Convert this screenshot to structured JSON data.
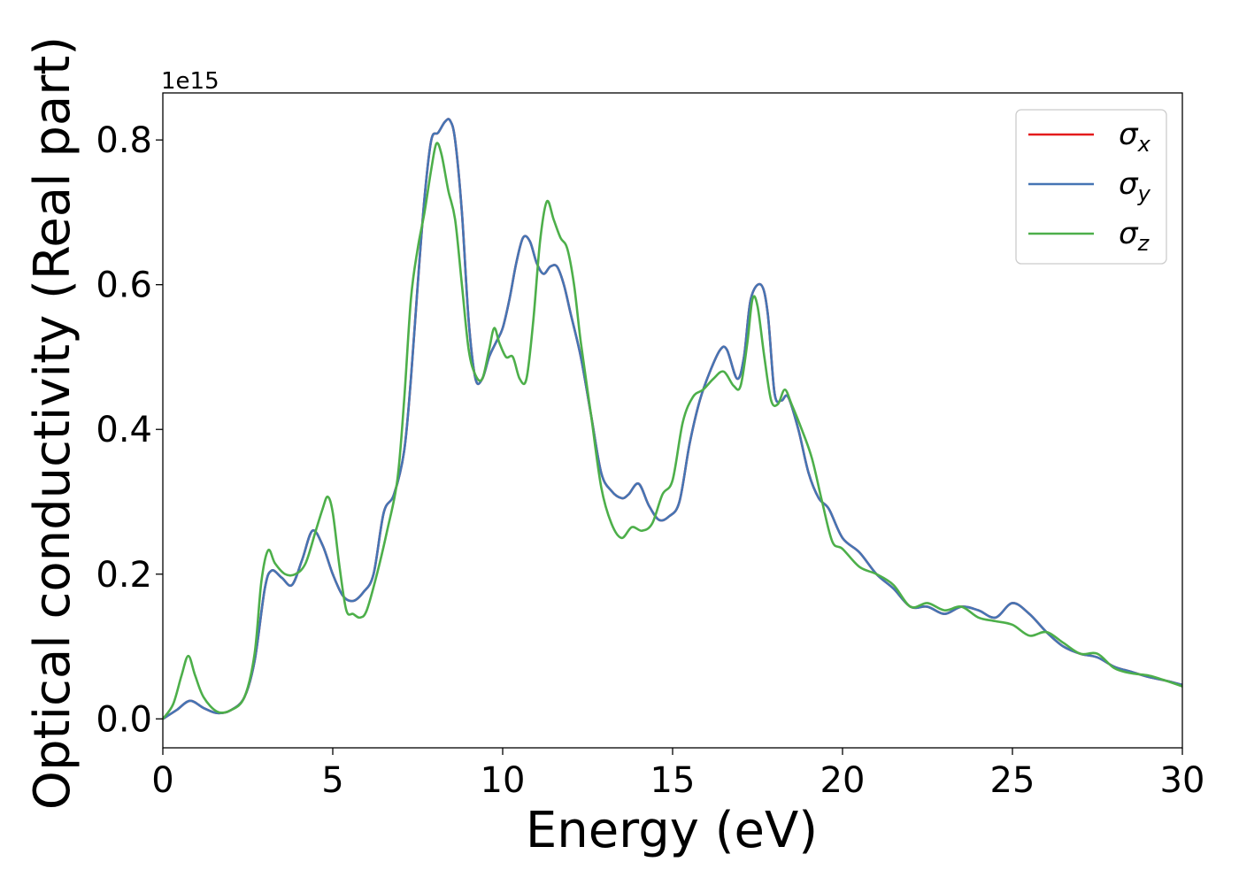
{
  "chart_data": {
    "type": "line",
    "xlabel": "Energy (eV)",
    "ylabel": "Optical conductivity (Real part)",
    "y_offset_text": "1e15",
    "xlim": [
      0,
      30
    ],
    "ylim": [
      -0.04,
      0.865
    ],
    "x_ticks": [
      0,
      5,
      10,
      15,
      20,
      25,
      30
    ],
    "x_tick_labels": [
      "0",
      "5",
      "10",
      "15",
      "20",
      "25",
      "30"
    ],
    "y_ticks": [
      0.0,
      0.2,
      0.4,
      0.6,
      0.8
    ],
    "y_tick_labels": [
      "0.0",
      "0.2",
      "0.4",
      "0.6",
      "0.8"
    ],
    "grid": false,
    "legend_position": "top-right",
    "series": [
      {
        "name": "σx",
        "symbol": "σ",
        "subscript": "x",
        "color": "#e41a1c",
        "x": [
          0,
          0.4,
          0.8,
          1.2,
          1.6,
          2.0,
          2.4,
          2.7,
          3.0,
          3.2,
          3.5,
          3.8,
          4.1,
          4.4,
          4.7,
          5.0,
          5.3,
          5.6,
          5.9,
          6.2,
          6.5,
          6.8,
          7.1,
          7.3,
          7.5,
          7.7,
          7.9,
          8.1,
          8.3,
          8.45,
          8.6,
          8.8,
          9.0,
          9.2,
          9.4,
          9.6,
          9.8,
          10.0,
          10.2,
          10.4,
          10.6,
          10.8,
          11.0,
          11.2,
          11.4,
          11.6,
          11.8,
          12.0,
          12.3,
          12.6,
          12.9,
          13.2,
          13.5,
          13.7,
          14.0,
          14.3,
          14.6,
          14.9,
          15.2,
          15.5,
          15.8,
          16.1,
          16.4,
          16.6,
          16.9,
          17.1,
          17.3,
          17.6,
          17.8,
          18.0,
          18.2,
          18.4,
          18.7,
          19.0,
          19.3,
          19.6,
          20.0,
          20.5,
          21.0,
          21.5,
          22.0,
          22.5,
          23.0,
          23.5,
          24.0,
          24.5,
          25.0,
          25.5,
          26.0,
          26.5,
          27.0,
          27.5,
          28.0,
          28.5,
          29.0,
          29.5,
          30.0
        ],
        "values": [
          0.0,
          0.012,
          0.025,
          0.015,
          0.008,
          0.012,
          0.03,
          0.08,
          0.18,
          0.205,
          0.195,
          0.185,
          0.22,
          0.26,
          0.24,
          0.2,
          0.17,
          0.163,
          0.175,
          0.2,
          0.285,
          0.31,
          0.37,
          0.47,
          0.6,
          0.72,
          0.8,
          0.81,
          0.825,
          0.827,
          0.8,
          0.7,
          0.55,
          0.47,
          0.47,
          0.5,
          0.52,
          0.54,
          0.58,
          0.63,
          0.665,
          0.66,
          0.63,
          0.615,
          0.625,
          0.625,
          0.6,
          0.56,
          0.5,
          0.42,
          0.34,
          0.315,
          0.305,
          0.31,
          0.325,
          0.295,
          0.275,
          0.28,
          0.3,
          0.38,
          0.44,
          0.48,
          0.51,
          0.51,
          0.47,
          0.5,
          0.58,
          0.6,
          0.56,
          0.45,
          0.44,
          0.445,
          0.4,
          0.34,
          0.305,
          0.29,
          0.25,
          0.23,
          0.2,
          0.18,
          0.155,
          0.155,
          0.145,
          0.155,
          0.15,
          0.14,
          0.16,
          0.145,
          0.12,
          0.1,
          0.09,
          0.085,
          0.072,
          0.065,
          0.058,
          0.053,
          0.047
        ]
      },
      {
        "name": "σy",
        "symbol": "σ",
        "subscript": "y",
        "color": "#4575b4",
        "x": [
          0,
          0.4,
          0.8,
          1.2,
          1.6,
          2.0,
          2.4,
          2.7,
          3.0,
          3.2,
          3.5,
          3.8,
          4.1,
          4.4,
          4.7,
          5.0,
          5.3,
          5.6,
          5.9,
          6.2,
          6.5,
          6.8,
          7.1,
          7.3,
          7.5,
          7.7,
          7.9,
          8.1,
          8.3,
          8.45,
          8.6,
          8.8,
          9.0,
          9.2,
          9.4,
          9.6,
          9.8,
          10.0,
          10.2,
          10.4,
          10.6,
          10.8,
          11.0,
          11.2,
          11.4,
          11.6,
          11.8,
          12.0,
          12.3,
          12.6,
          12.9,
          13.2,
          13.5,
          13.7,
          14.0,
          14.3,
          14.6,
          14.9,
          15.2,
          15.5,
          15.8,
          16.1,
          16.4,
          16.6,
          16.9,
          17.1,
          17.3,
          17.6,
          17.8,
          18.0,
          18.2,
          18.4,
          18.7,
          19.0,
          19.3,
          19.6,
          20.0,
          20.5,
          21.0,
          21.5,
          22.0,
          22.5,
          23.0,
          23.5,
          24.0,
          24.5,
          25.0,
          25.5,
          26.0,
          26.5,
          27.0,
          27.5,
          28.0,
          28.5,
          29.0,
          29.5,
          30.0
        ],
        "values": [
          0.0,
          0.012,
          0.025,
          0.015,
          0.008,
          0.012,
          0.03,
          0.08,
          0.18,
          0.205,
          0.195,
          0.185,
          0.22,
          0.26,
          0.24,
          0.2,
          0.17,
          0.163,
          0.175,
          0.2,
          0.285,
          0.31,
          0.37,
          0.47,
          0.6,
          0.72,
          0.8,
          0.81,
          0.825,
          0.827,
          0.8,
          0.7,
          0.55,
          0.47,
          0.47,
          0.5,
          0.52,
          0.54,
          0.58,
          0.63,
          0.665,
          0.66,
          0.63,
          0.615,
          0.625,
          0.625,
          0.6,
          0.56,
          0.5,
          0.42,
          0.34,
          0.315,
          0.305,
          0.31,
          0.325,
          0.295,
          0.275,
          0.28,
          0.3,
          0.38,
          0.44,
          0.48,
          0.51,
          0.51,
          0.47,
          0.5,
          0.58,
          0.6,
          0.56,
          0.45,
          0.44,
          0.445,
          0.4,
          0.34,
          0.305,
          0.29,
          0.25,
          0.23,
          0.2,
          0.18,
          0.155,
          0.155,
          0.145,
          0.155,
          0.15,
          0.14,
          0.16,
          0.145,
          0.12,
          0.1,
          0.09,
          0.085,
          0.072,
          0.065,
          0.058,
          0.053,
          0.047
        ]
      },
      {
        "name": "σz",
        "symbol": "σ",
        "subscript": "z",
        "color": "#4daf4a",
        "x": [
          0,
          0.3,
          0.55,
          0.75,
          0.95,
          1.2,
          1.6,
          2.0,
          2.4,
          2.7,
          2.9,
          3.1,
          3.3,
          3.6,
          3.9,
          4.2,
          4.5,
          4.7,
          4.85,
          5.0,
          5.2,
          5.4,
          5.6,
          5.8,
          6.0,
          6.3,
          6.6,
          6.9,
          7.1,
          7.3,
          7.5,
          7.7,
          7.9,
          8.05,
          8.2,
          8.4,
          8.6,
          8.8,
          9.0,
          9.2,
          9.4,
          9.6,
          9.75,
          9.9,
          10.1,
          10.3,
          10.5,
          10.7,
          10.9,
          11.1,
          11.3,
          11.5,
          11.7,
          11.9,
          12.1,
          12.3,
          12.6,
          12.9,
          13.2,
          13.5,
          13.8,
          14.1,
          14.4,
          14.7,
          15.0,
          15.3,
          15.6,
          15.9,
          16.2,
          16.5,
          16.8,
          17.0,
          17.2,
          17.35,
          17.5,
          17.7,
          17.9,
          18.1,
          18.3,
          18.5,
          18.8,
          19.1,
          19.4,
          19.7,
          20.0,
          20.5,
          21.0,
          21.5,
          22.0,
          22.5,
          23.0,
          23.5,
          24.0,
          24.5,
          25.0,
          25.5,
          26.0,
          26.5,
          27.0,
          27.5,
          28.0,
          28.5,
          29.0,
          29.5,
          30.0
        ],
        "values": [
          0.0,
          0.02,
          0.06,
          0.087,
          0.06,
          0.03,
          0.01,
          0.012,
          0.03,
          0.09,
          0.19,
          0.233,
          0.215,
          0.2,
          0.2,
          0.215,
          0.26,
          0.29,
          0.307,
          0.285,
          0.21,
          0.15,
          0.145,
          0.14,
          0.15,
          0.2,
          0.26,
          0.33,
          0.44,
          0.58,
          0.65,
          0.7,
          0.76,
          0.795,
          0.78,
          0.73,
          0.69,
          0.6,
          0.51,
          0.475,
          0.47,
          0.51,
          0.54,
          0.52,
          0.5,
          0.5,
          0.47,
          0.47,
          0.55,
          0.66,
          0.715,
          0.69,
          0.665,
          0.65,
          0.6,
          0.52,
          0.42,
          0.32,
          0.27,
          0.25,
          0.265,
          0.26,
          0.27,
          0.31,
          0.33,
          0.41,
          0.445,
          0.455,
          0.47,
          0.48,
          0.46,
          0.46,
          0.52,
          0.58,
          0.57,
          0.5,
          0.44,
          0.435,
          0.455,
          0.435,
          0.4,
          0.36,
          0.3,
          0.245,
          0.235,
          0.21,
          0.2,
          0.185,
          0.155,
          0.16,
          0.15,
          0.155,
          0.14,
          0.135,
          0.13,
          0.115,
          0.12,
          0.105,
          0.09,
          0.09,
          0.07,
          0.063,
          0.06,
          0.053,
          0.045
        ]
      }
    ]
  }
}
